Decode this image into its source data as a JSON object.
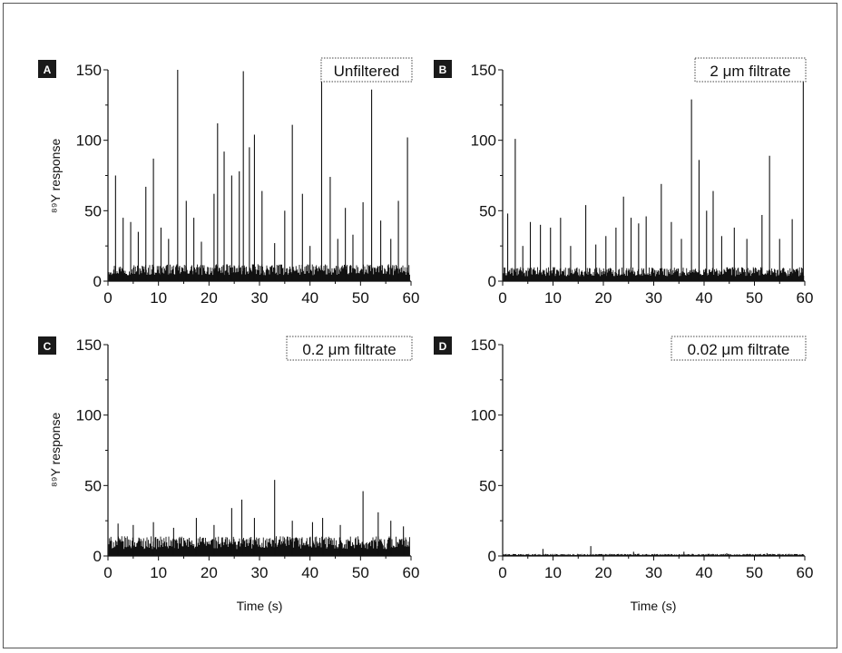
{
  "figure": {
    "panels": [
      {
        "id": "A",
        "letter": "A",
        "legend": "Unfiltered",
        "ylabel": "⁸⁹Y response",
        "xlabel": ""
      },
      {
        "id": "B",
        "letter": "B",
        "legend": "2 μm filtrate",
        "ylabel": "",
        "xlabel": ""
      },
      {
        "id": "C",
        "letter": "C",
        "legend": "0.2 μm filtrate",
        "ylabel": "⁸⁹Y response",
        "xlabel": "Time (s)"
      },
      {
        "id": "D",
        "letter": "D",
        "legend": "0.02 μm filtrate",
        "ylabel": "",
        "xlabel": "Time (s)"
      }
    ]
  },
  "chart_data": [
    {
      "type": "line",
      "panel": "A",
      "title": "Unfiltered",
      "xlabel": "",
      "ylabel": "⁸⁹Y response",
      "xlim": [
        0,
        60
      ],
      "ylim": [
        0,
        150
      ],
      "xticks": [
        0,
        10,
        20,
        30,
        40,
        50,
        60
      ],
      "yticks": [
        0,
        50,
        100,
        150
      ],
      "baseline": [
        0,
        12
      ],
      "spikes": [
        {
          "x": 1.5,
          "y": 75
        },
        {
          "x": 3.0,
          "y": 45
        },
        {
          "x": 4.5,
          "y": 42
        },
        {
          "x": 6.0,
          "y": 35
        },
        {
          "x": 7.5,
          "y": 67
        },
        {
          "x": 9.0,
          "y": 87
        },
        {
          "x": 10.5,
          "y": 38
        },
        {
          "x": 12.0,
          "y": 30
        },
        {
          "x": 13.8,
          "y": 150
        },
        {
          "x": 15.5,
          "y": 57
        },
        {
          "x": 17.0,
          "y": 45
        },
        {
          "x": 18.5,
          "y": 28
        },
        {
          "x": 21.0,
          "y": 62
        },
        {
          "x": 21.7,
          "y": 112
        },
        {
          "x": 23.0,
          "y": 92
        },
        {
          "x": 24.5,
          "y": 75
        },
        {
          "x": 26.0,
          "y": 78
        },
        {
          "x": 26.8,
          "y": 149
        },
        {
          "x": 28.0,
          "y": 95
        },
        {
          "x": 29.0,
          "y": 104
        },
        {
          "x": 30.5,
          "y": 64
        },
        {
          "x": 33.0,
          "y": 27
        },
        {
          "x": 35.0,
          "y": 50
        },
        {
          "x": 36.5,
          "y": 111
        },
        {
          "x": 38.5,
          "y": 62
        },
        {
          "x": 40.0,
          "y": 25
        },
        {
          "x": 42.3,
          "y": 150
        },
        {
          "x": 44.0,
          "y": 74
        },
        {
          "x": 45.5,
          "y": 30
        },
        {
          "x": 47.0,
          "y": 52
        },
        {
          "x": 48.5,
          "y": 33
        },
        {
          "x": 50.5,
          "y": 56
        },
        {
          "x": 52.2,
          "y": 136
        },
        {
          "x": 54.0,
          "y": 43
        },
        {
          "x": 56.0,
          "y": 30
        },
        {
          "x": 57.5,
          "y": 57
        },
        {
          "x": 59.3,
          "y": 102
        }
      ]
    },
    {
      "type": "line",
      "panel": "B",
      "title": "2 μm filtrate",
      "xlabel": "",
      "ylabel": "",
      "xlim": [
        0,
        60
      ],
      "ylim": [
        0,
        150
      ],
      "xticks": [
        0,
        10,
        20,
        30,
        40,
        50,
        60
      ],
      "yticks": [
        0,
        50,
        100,
        150
      ],
      "baseline": [
        0,
        10
      ],
      "spikes": [
        {
          "x": 1.0,
          "y": 48
        },
        {
          "x": 2.5,
          "y": 101
        },
        {
          "x": 4.0,
          "y": 25
        },
        {
          "x": 5.5,
          "y": 42
        },
        {
          "x": 7.5,
          "y": 40
        },
        {
          "x": 9.5,
          "y": 38
        },
        {
          "x": 11.5,
          "y": 45
        },
        {
          "x": 13.5,
          "y": 25
        },
        {
          "x": 16.5,
          "y": 54
        },
        {
          "x": 18.5,
          "y": 26
        },
        {
          "x": 20.5,
          "y": 32
        },
        {
          "x": 22.5,
          "y": 38
        },
        {
          "x": 24.0,
          "y": 60
        },
        {
          "x": 25.5,
          "y": 45
        },
        {
          "x": 27.0,
          "y": 41
        },
        {
          "x": 28.5,
          "y": 46
        },
        {
          "x": 31.5,
          "y": 69
        },
        {
          "x": 33.5,
          "y": 42
        },
        {
          "x": 35.5,
          "y": 30
        },
        {
          "x": 37.5,
          "y": 129
        },
        {
          "x": 39.0,
          "y": 86
        },
        {
          "x": 40.5,
          "y": 50
        },
        {
          "x": 41.8,
          "y": 64
        },
        {
          "x": 43.5,
          "y": 32
        },
        {
          "x": 46.0,
          "y": 38
        },
        {
          "x": 48.5,
          "y": 30
        },
        {
          "x": 51.5,
          "y": 47
        },
        {
          "x": 53.0,
          "y": 89
        },
        {
          "x": 55.0,
          "y": 30
        },
        {
          "x": 57.5,
          "y": 44
        },
        {
          "x": 59.7,
          "y": 145
        }
      ]
    },
    {
      "type": "line",
      "panel": "C",
      "title": "0.2 μm filtrate",
      "xlabel": "Time (s)",
      "ylabel": "⁸⁹Y response",
      "xlim": [
        0,
        60
      ],
      "ylim": [
        0,
        150
      ],
      "xticks": [
        0,
        10,
        20,
        30,
        40,
        50,
        60
      ],
      "yticks": [
        0,
        50,
        100,
        150
      ],
      "baseline": [
        0,
        14
      ],
      "spikes": [
        {
          "x": 2.0,
          "y": 23
        },
        {
          "x": 5.0,
          "y": 22
        },
        {
          "x": 9.0,
          "y": 24
        },
        {
          "x": 13.0,
          "y": 20
        },
        {
          "x": 17.5,
          "y": 27
        },
        {
          "x": 21.0,
          "y": 22
        },
        {
          "x": 24.5,
          "y": 34
        },
        {
          "x": 26.5,
          "y": 40
        },
        {
          "x": 29.0,
          "y": 27
        },
        {
          "x": 33.0,
          "y": 54
        },
        {
          "x": 36.5,
          "y": 25
        },
        {
          "x": 40.5,
          "y": 24
        },
        {
          "x": 42.5,
          "y": 27
        },
        {
          "x": 46.0,
          "y": 22
        },
        {
          "x": 50.5,
          "y": 46
        },
        {
          "x": 53.5,
          "y": 31
        },
        {
          "x": 56.0,
          "y": 25
        },
        {
          "x": 58.5,
          "y": 21
        }
      ]
    },
    {
      "type": "line",
      "panel": "D",
      "title": "0.02 μm filtrate",
      "xlabel": "Time (s)",
      "ylabel": "",
      "xlim": [
        0,
        60
      ],
      "ylim": [
        0,
        150
      ],
      "xticks": [
        0,
        10,
        20,
        30,
        40,
        50,
        60
      ],
      "yticks": [
        0,
        50,
        100,
        150
      ],
      "baseline": [
        0,
        1.5
      ],
      "spikes": [
        {
          "x": 8.0,
          "y": 5
        },
        {
          "x": 17.5,
          "y": 7
        },
        {
          "x": 26.0,
          "y": 3
        },
        {
          "x": 36.0,
          "y": 3
        },
        {
          "x": 44.5,
          "y": 2
        },
        {
          "x": 52.5,
          "y": 2
        }
      ]
    }
  ]
}
